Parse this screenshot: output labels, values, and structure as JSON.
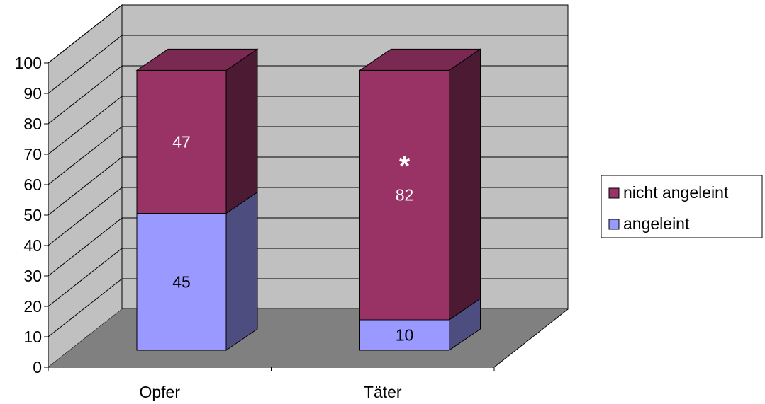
{
  "chart_data": {
    "type": "bar",
    "stacked": true,
    "three_d": true,
    "categories": [
      "Opfer",
      "Täter"
    ],
    "series": [
      {
        "name": "angeleint",
        "values": [
          45,
          10
        ],
        "color": "#9999ff"
      },
      {
        "name": "nicht angeleint",
        "values": [
          47,
          82
        ],
        "color": "#993366"
      }
    ],
    "data_labels": {
      "angeleint": [
        "45",
        "10"
      ],
      "nicht angeleint": [
        "47",
        "82"
      ]
    },
    "annotations": [
      {
        "category": "Täter",
        "text": "*"
      }
    ],
    "yticks": [
      "0",
      "10",
      "20",
      "30",
      "40",
      "50",
      "60",
      "70",
      "80",
      "90",
      "100"
    ],
    "ylim": [
      0,
      100
    ],
    "grid": true,
    "legend_position": "right",
    "legend_order": [
      "nicht angeleint",
      "angeleint"
    ],
    "wall_color": "#c0c0c0",
    "floor_color": "#808080",
    "title": "",
    "xlabel": "",
    "ylabel": ""
  }
}
